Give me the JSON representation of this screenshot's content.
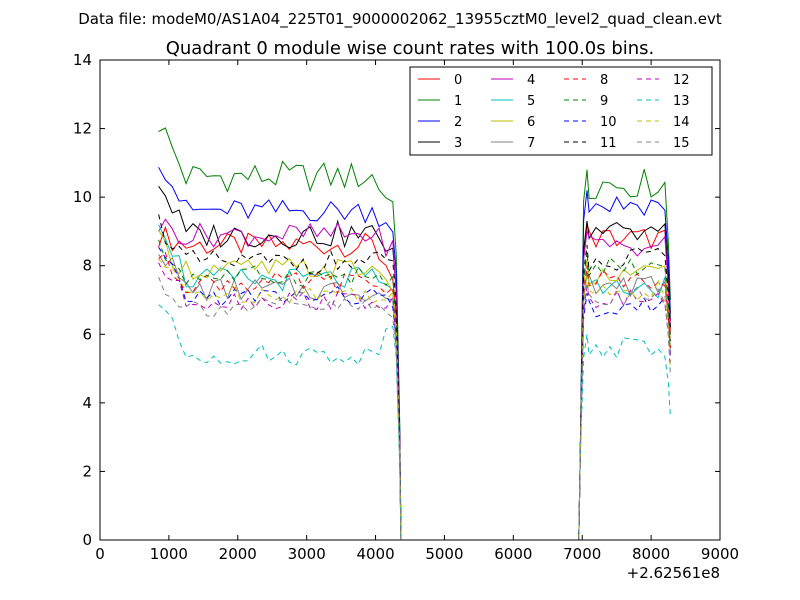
{
  "chart_data": {
    "type": "line",
    "suptitle": "Data file: modeM0/AS1A04_225T01_9000002062_13955cztM0_level2_quad_clean.evt",
    "title": "Quadrant 0 module wise count rates with 100.0s bins.",
    "xlabel": "",
    "ylabel": "",
    "x_offset_label": "+2.62561e8",
    "xlim": [
      0,
      9000
    ],
    "ylim": [
      0,
      14
    ],
    "xticks": [
      "0",
      "1000",
      "2000",
      "3000",
      "4000",
      "5000",
      "6000",
      "7000",
      "8000",
      "9000"
    ],
    "yticks": [
      "0",
      "2",
      "4",
      "6",
      "8",
      "10",
      "12",
      "14"
    ],
    "grid": false,
    "legend_position": "top-right",
    "legend_columns": 4,
    "time_bins": {
      "segment1": {
        "start": 850,
        "end": 4250,
        "step": 100
      },
      "drop": [
        4300,
        4350,
        4370
      ],
      "gap": {
        "start": 4400,
        "end": 6950
      },
      "segment2": {
        "rise": [
          6970,
          7020,
          7070
        ],
        "start": 7100,
        "end": 8200,
        "step": 100
      },
      "tail": [
        8250,
        8280
      ]
    },
    "series": [
      {
        "name": "0",
        "color": "#ff0000",
        "dash": "solid",
        "mean1": 8.6,
        "mean2": 8.8,
        "start1": 8.9,
        "end1": 7.8,
        "tail": 6.0,
        "amp": 0.35
      },
      {
        "name": "1",
        "color": "#008000",
        "dash": "solid",
        "mean1": 10.6,
        "mean2": 10.4,
        "start1": 12.2,
        "end1": 9.8,
        "tail": 7.0,
        "amp": 0.45
      },
      {
        "name": "2",
        "color": "#0000ff",
        "dash": "solid",
        "mean1": 9.6,
        "mean2": 9.8,
        "start1": 11.2,
        "end1": 9.2,
        "tail": 6.6,
        "amp": 0.35
      },
      {
        "name": "3",
        "color": "#000000",
        "dash": "solid",
        "mean1": 8.9,
        "mean2": 8.9,
        "start1": 10.5,
        "end1": 8.6,
        "tail": 6.4,
        "amp": 0.4
      },
      {
        "name": "4",
        "color": "#bf00bf",
        "dash": "solid",
        "mean1": 8.9,
        "mean2": 8.6,
        "start1": 9.2,
        "end1": 8.5,
        "tail": 6.2,
        "amp": 0.35
      },
      {
        "name": "5",
        "color": "#00bfbf",
        "dash": "solid",
        "mean1": 7.6,
        "mean2": 7.4,
        "start1": 9.5,
        "end1": 7.2,
        "tail": 5.8,
        "amp": 0.35
      },
      {
        "name": "6",
        "color": "#bfbf00",
        "dash": "solid",
        "mean1": 7.9,
        "mean2": 7.8,
        "start1": 8.7,
        "end1": 7.5,
        "tail": 5.6,
        "amp": 0.35
      },
      {
        "name": "7",
        "color": "#808080",
        "dash": "solid",
        "mean1": 7.3,
        "mean2": 7.4,
        "start1": 8.6,
        "end1": 7.0,
        "tail": 5.5,
        "amp": 0.35
      },
      {
        "name": "8",
        "color": "#ff0000",
        "dash": "dashed",
        "mean1": 7.5,
        "mean2": 7.6,
        "start1": 8.3,
        "end1": 7.2,
        "tail": 5.6,
        "amp": 0.3
      },
      {
        "name": "9",
        "color": "#008000",
        "dash": "dashed",
        "mean1": 7.7,
        "mean2": 8.0,
        "start1": 8.5,
        "end1": 7.4,
        "tail": 5.8,
        "amp": 0.3
      },
      {
        "name": "10",
        "color": "#0000ff",
        "dash": "dashed",
        "mean1": 7.1,
        "mean2": 6.8,
        "start1": 8.4,
        "end1": 6.9,
        "tail": 5.4,
        "amp": 0.3
      },
      {
        "name": "11",
        "color": "#000000",
        "dash": "dashed",
        "mean1": 8.1,
        "mean2": 8.2,
        "start1": 9.3,
        "end1": 8.0,
        "tail": 6.2,
        "amp": 0.35
      },
      {
        "name": "12",
        "color": "#bf00bf",
        "dash": "dashed",
        "mean1": 7.0,
        "mean2": 7.0,
        "start1": 8.1,
        "end1": 6.8,
        "tail": 5.2,
        "amp": 0.3
      },
      {
        "name": "13",
        "color": "#00bfbf",
        "dash": "dashed",
        "mean1": 5.4,
        "mean2": 5.6,
        "start1": 7.0,
        "end1": 6.3,
        "tail": 3.6,
        "amp": 0.3
      },
      {
        "name": "14",
        "color": "#bfbf00",
        "dash": "dashed",
        "mean1": 7.2,
        "mean2": 7.3,
        "start1": 8.2,
        "end1": 7.0,
        "tail": 5.0,
        "amp": 0.3
      },
      {
        "name": "15",
        "color": "#808080",
        "dash": "dashed",
        "mean1": 6.8,
        "mean2": 7.1,
        "start1": 7.6,
        "end1": 6.5,
        "tail": 4.8,
        "amp": 0.3
      }
    ]
  }
}
